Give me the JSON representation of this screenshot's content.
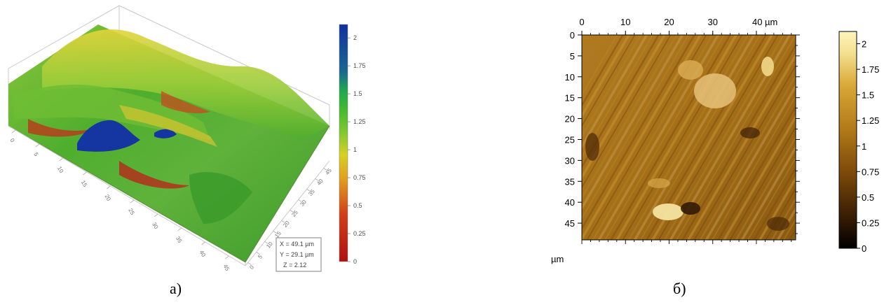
{
  "chart_data": [
    {
      "type": "heatmap",
      "panel_label": "a)",
      "view": "3d surface",
      "x_ticks": [
        "0",
        "5",
        "10",
        "15",
        "20",
        "25",
        "30",
        "35",
        "40",
        "45"
      ],
      "y_ticks": [
        "0",
        "5",
        "10",
        "15",
        "20",
        "25",
        "30",
        "35",
        "40",
        "45"
      ],
      "colorbar": {
        "ticks": [
          "0",
          "0.25",
          "0.5",
          "0.75",
          "1",
          "1.25",
          "1.5",
          "1.75",
          "2"
        ],
        "range": [
          0,
          2.12
        ],
        "colors": [
          "#b01010",
          "#e0a020",
          "#d8d020",
          "#3fb830",
          "#20a850",
          "#1030a0"
        ]
      },
      "tooltip": {
        "x": "X = 49.1 µm",
        "y": "Y = 29.1 µm",
        "z": "Z = 2.12"
      }
    },
    {
      "type": "heatmap",
      "panel_label": "б)",
      "view": "2d map",
      "x_ticks": [
        "0",
        "10",
        "20",
        "30",
        "40 µm"
      ],
      "y_ticks": [
        "0",
        "5",
        "10",
        "15",
        "20",
        "25",
        "30",
        "35",
        "40",
        "45"
      ],
      "y_unit": "µm",
      "xlim": [
        0,
        49
      ],
      "ylim": [
        0,
        49
      ],
      "colorbar": {
        "ticks": [
          "0",
          "0.25",
          "0.5",
          "0.75",
          "1",
          "1.25",
          "1.5",
          "1.75",
          "2"
        ],
        "range": [
          0,
          2.12
        ],
        "colors": [
          "#000000",
          "#3a1d04",
          "#7d4a0a",
          "#b27a18",
          "#d9a838",
          "#f4e090",
          "#fff5c0"
        ]
      }
    }
  ]
}
